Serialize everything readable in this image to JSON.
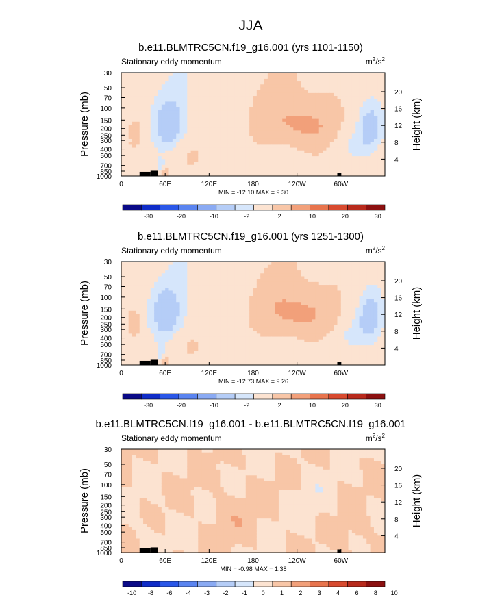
{
  "figure_title": "JJA",
  "colors": {
    "scale": [
      "#0a0a87",
      "#0f2cc8",
      "#2a57e8",
      "#5a84f0",
      "#8aaaf3",
      "#b5cdf7",
      "#d6e6fb",
      "#fce3d1",
      "#f8c6a7",
      "#f2a07a",
      "#e8744d",
      "#d84a2f",
      "#b82a1c",
      "#8c1010"
    ],
    "frame": "#000000"
  },
  "chart_data": [
    {
      "type": "heatmap",
      "title": "b.e11.BLMTRC5CN.f19_g16.001 (yrs 1101-1150)",
      "subtitle_left": "Stationary eddy momentum",
      "units": {
        "base": "m",
        "sup1": "2",
        "mid": "/s",
        "sup2": "2"
      },
      "ylabel": "Pressure (mb)",
      "ylabel_right": "Height (km)",
      "x_ticks": [
        "0",
        "60E",
        "120E",
        "180",
        "120W",
        "60W"
      ],
      "x_tick_values": [
        0,
        60,
        120,
        180,
        240,
        300
      ],
      "xlim": [
        0,
        360
      ],
      "y_ticks": [
        "30",
        "50",
        "70",
        "100",
        "150",
        "200",
        "250",
        "300",
        "400",
        "500",
        "700",
        "850",
        "1000"
      ],
      "y_tick_values": [
        30,
        50,
        70,
        100,
        150,
        200,
        250,
        300,
        400,
        500,
        700,
        850,
        1000
      ],
      "ylim": [
        1000,
        30
      ],
      "y_scale": "log",
      "height_ticks": [
        "4",
        "8",
        "12",
        "16",
        "20"
      ],
      "height_tick_values": [
        4,
        8,
        12,
        16,
        20
      ],
      "stats": "MIN = -12.10   MAX =   9.30",
      "min": -12.1,
      "max": 9.3,
      "colorbar_levels": [
        "-30",
        "-20",
        "-10",
        "-2",
        "2",
        "10",
        "20",
        "30"
      ],
      "colorbar_boxes": 14,
      "level_values": [
        -35,
        -30,
        -25,
        -20,
        -15,
        -10,
        -5,
        -2,
        2,
        5,
        10,
        15,
        20,
        25,
        30
      ],
      "base_pattern": "easterly_westerly_mix",
      "features": [
        {
          "lon": 250,
          "p": 175,
          "value": 4,
          "wlon": 50,
          "wp": 0.26
        },
        {
          "lon": 190,
          "p": 90,
          "value": 1.8,
          "wlon": 70,
          "wp": 0.45
        },
        {
          "lon": 65,
          "p": 160,
          "value": -7,
          "wlon": 18,
          "wp": 0.22
        },
        {
          "lon": 340,
          "p": 190,
          "value": -7,
          "wlon": 16,
          "wp": 0.22
        },
        {
          "lon": 20,
          "p": 230,
          "value": 4,
          "wlon": 13,
          "wp": 0.18
        },
        {
          "lon": 60,
          "p": 880,
          "value": 6,
          "wlon": 5,
          "wp": 0.06
        },
        {
          "lon": 55,
          "p": 720,
          "value": -3,
          "wlon": 6,
          "wp": 0.07
        },
        {
          "lon": 100,
          "p": 560,
          "value": 2.5,
          "wlon": 30,
          "wp": 0.2
        },
        {
          "lon": 315,
          "p": 330,
          "value": -2.5,
          "wlon": 20,
          "wp": 0.15
        }
      ]
    },
    {
      "type": "heatmap",
      "title": "b.e11.BLMTRC5CN.f19_g16.001 (yrs 1251-1300)",
      "subtitle_left": "Stationary eddy momentum",
      "units": {
        "base": "m",
        "sup1": "2",
        "mid": "/s",
        "sup2": "2"
      },
      "ylabel": "Pressure (mb)",
      "ylabel_right": "Height (km)",
      "x_ticks": [
        "0",
        "60E",
        "120E",
        "180",
        "120W",
        "60W"
      ],
      "x_tick_values": [
        0,
        60,
        120,
        180,
        240,
        300
      ],
      "xlim": [
        0,
        360
      ],
      "y_ticks": [
        "30",
        "50",
        "70",
        "100",
        "150",
        "200",
        "250",
        "300",
        "400",
        "500",
        "700",
        "850",
        "1000"
      ],
      "y_tick_values": [
        30,
        50,
        70,
        100,
        150,
        200,
        250,
        300,
        400,
        500,
        700,
        850,
        1000
      ],
      "ylim": [
        1000,
        30
      ],
      "y_scale": "log",
      "height_ticks": [
        "4",
        "8",
        "12",
        "16",
        "20"
      ],
      "height_tick_values": [
        4,
        8,
        12,
        16,
        20
      ],
      "stats": "MIN = -12.73   MAX =   9.26",
      "min": -12.73,
      "max": 9.26,
      "colorbar_levels": [
        "-30",
        "-20",
        "-10",
        "-2",
        "2",
        "10",
        "20",
        "30"
      ],
      "colorbar_boxes": 14,
      "level_values": [
        -35,
        -30,
        -25,
        -20,
        -15,
        -10,
        -5,
        -2,
        2,
        5,
        10,
        15,
        20,
        25,
        30
      ],
      "base_pattern": "easterly_westerly_mix",
      "features": [
        {
          "lon": 245,
          "p": 175,
          "value": 4,
          "wlon": 48,
          "wp": 0.25
        },
        {
          "lon": 195,
          "p": 95,
          "value": 1.8,
          "wlon": 70,
          "wp": 0.45
        },
        {
          "lon": 62,
          "p": 160,
          "value": -7.5,
          "wlon": 18,
          "wp": 0.22
        },
        {
          "lon": 340,
          "p": 190,
          "value": -7.5,
          "wlon": 16,
          "wp": 0.22
        },
        {
          "lon": 18,
          "p": 230,
          "value": 4,
          "wlon": 13,
          "wp": 0.18
        },
        {
          "lon": 60,
          "p": 880,
          "value": 6,
          "wlon": 5,
          "wp": 0.06
        },
        {
          "lon": 55,
          "p": 720,
          "value": -3,
          "wlon": 6,
          "wp": 0.07
        },
        {
          "lon": 100,
          "p": 560,
          "value": 2.5,
          "wlon": 30,
          "wp": 0.2
        },
        {
          "lon": 315,
          "p": 330,
          "value": -2.5,
          "wlon": 20,
          "wp": 0.15
        }
      ]
    },
    {
      "type": "heatmap",
      "title": "b.e11.BLMTRC5CN.f19_g16.001 - b.e11.BLMTRC5CN.f19_g16.001",
      "subtitle_left": "Stationary eddy momentum",
      "units": {
        "base": "m",
        "sup1": "2",
        "mid": "/s",
        "sup2": "2"
      },
      "ylabel": "Pressure (mb)",
      "ylabel_right": "Height (km)",
      "x_ticks": [
        "0",
        "60E",
        "120E",
        "180",
        "120W",
        "60W"
      ],
      "x_tick_values": [
        0,
        60,
        120,
        180,
        240,
        300
      ],
      "xlim": [
        0,
        360
      ],
      "y_ticks": [
        "30",
        "50",
        "70",
        "100",
        "150",
        "200",
        "250",
        "300",
        "400",
        "500",
        "700",
        "850",
        "1000"
      ],
      "y_tick_values": [
        30,
        50,
        70,
        100,
        150,
        200,
        250,
        300,
        400,
        500,
        700,
        850,
        1000
      ],
      "ylim": [
        1000,
        30
      ],
      "y_scale": "log",
      "height_ticks": [
        "4",
        "8",
        "12",
        "16",
        "20"
      ],
      "height_tick_values": [
        4,
        8,
        12,
        16,
        20
      ],
      "stats": "MIN = -0.98   MAX =   1.38",
      "min": -0.98,
      "max": 1.38,
      "colorbar_levels": [
        "-10",
        "-8",
        "-6",
        "-4",
        "-3",
        "-2",
        "-1",
        "0",
        "1",
        "2",
        "3",
        "4",
        "6",
        "8",
        "10"
      ],
      "colorbar_boxes": 14,
      "level_values": [
        -12,
        -10,
        -8,
        -6,
        -4,
        -3,
        -2,
        -1,
        0,
        1,
        2,
        3,
        4,
        6,
        8,
        10
      ],
      "base_pattern": "difference_noise",
      "features": [
        {
          "lon": 150,
          "p": 300,
          "value": 0.5,
          "wlon": 30,
          "wp": 0.3
        },
        {
          "lon": 260,
          "p": 150,
          "value": -0.5,
          "wlon": 25,
          "wp": 0.3
        },
        {
          "lon": 40,
          "p": 400,
          "value": -0.4,
          "wlon": 20,
          "wp": 0.25
        },
        {
          "lon": 320,
          "p": 600,
          "value": 0.5,
          "wlon": 20,
          "wp": 0.2
        }
      ]
    }
  ]
}
